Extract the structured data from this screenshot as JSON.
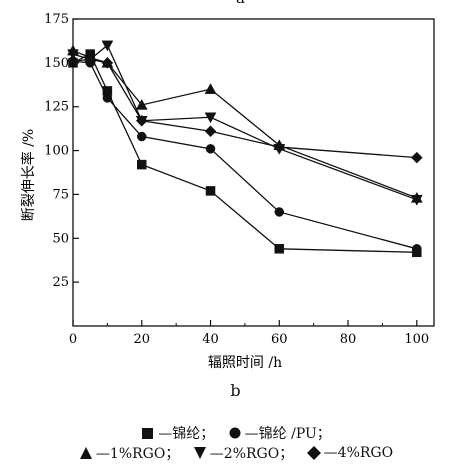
{
  "figure": {
    "top_letter": "a",
    "panel_label": "b"
  },
  "chart_data": {
    "type": "line",
    "xlabel": "辐照时间 /h",
    "ylabel": "断裂伸长率 /%",
    "xlim": [
      0,
      105
    ],
    "ylim": [
      0,
      175
    ],
    "xticks": [
      0,
      20,
      40,
      60,
      80,
      100
    ],
    "yticks": [
      25,
      50,
      75,
      100,
      125,
      150,
      175
    ],
    "grid": false,
    "legend_position": "bottom",
    "series": [
      {
        "name": "—锦纶；",
        "marker": "square",
        "x": [
          0,
          5,
          10,
          20,
          40,
          60,
          100
        ],
        "y": [
          150,
          155,
          134,
          92,
          77,
          44,
          42
        ]
      },
      {
        "name": "—锦纶 /PU；",
        "marker": "circle",
        "x": [
          0,
          5,
          10,
          20,
          40,
          60,
          100
        ],
        "y": [
          151,
          150,
          130,
          108,
          101,
          65,
          44
        ]
      },
      {
        "name": "—1%RGO；",
        "marker": "triangle-up",
        "x": [
          0,
          5,
          10,
          20,
          40,
          60,
          100
        ],
        "y": [
          157,
          153,
          150,
          126,
          135,
          103,
          73
        ]
      },
      {
        "name": "—2%RGO；",
        "marker": "triangle-down",
        "x": [
          0,
          5,
          10,
          20,
          40,
          60,
          100
        ],
        "y": [
          155,
          152,
          160,
          117,
          119,
          101,
          72
        ]
      },
      {
        "name": "—4%RGO",
        "marker": "diamond",
        "x": [
          0,
          5,
          10,
          20,
          40,
          60,
          100
        ],
        "y": [
          151,
          152,
          150,
          117,
          111,
          102,
          96
        ]
      }
    ]
  }
}
